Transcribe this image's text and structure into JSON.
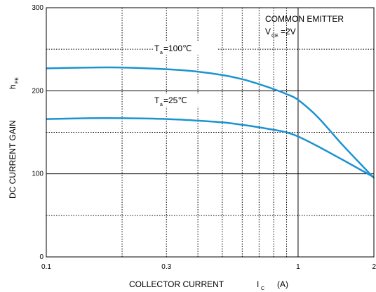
{
  "chart_data": {
    "type": "line",
    "x_scale": "log",
    "xlim": [
      0.1,
      2
    ],
    "ylim": [
      0,
      300
    ],
    "x_ticks": [
      {
        "value": 0.1,
        "label": "0.1"
      },
      {
        "value": 0.3,
        "label": "0.3"
      },
      {
        "value": 1,
        "label": "1"
      },
      {
        "value": 2,
        "label": "2"
      }
    ],
    "x_minor_grid": [
      0.2,
      0.4,
      0.5,
      0.6,
      0.7,
      0.8,
      0.9
    ],
    "y_ticks": [
      {
        "value": 0,
        "label": "0"
      },
      {
        "value": 100,
        "label": "100"
      },
      {
        "value": 200,
        "label": "200"
      },
      {
        "value": 300,
        "label": "300"
      }
    ],
    "y_minor_grid": [
      50,
      150,
      250
    ],
    "xlabel": {
      "main": "COLLECTOR CURRENT",
      "sym": "I",
      "sub": "C",
      "unit": "(A)"
    },
    "ylabel": {
      "main": "DC CURRENT GAIN",
      "sym": "h",
      "sub": "FE"
    },
    "annotation": {
      "line1": "COMMON EMITTER",
      "sym": "V",
      "sub": "CE",
      "value": "=2V"
    },
    "series": [
      {
        "name": "100℃",
        "label": {
          "sym": "T",
          "sub": "a",
          "value": "=100℃"
        },
        "color": "#1b93d1",
        "x": [
          0.1,
          0.15,
          0.2,
          0.3,
          0.4,
          0.5,
          0.6,
          0.7,
          0.8,
          0.9,
          1.0,
          1.2,
          1.5,
          2.0
        ],
        "y": [
          227,
          228,
          228,
          226,
          223,
          219,
          214,
          208,
          202,
          196,
          189,
          168,
          135,
          95
        ]
      },
      {
        "name": "25℃",
        "label": {
          "sym": "T",
          "sub": "a",
          "value": "=25℃"
        },
        "color": "#1b93d1",
        "x": [
          0.1,
          0.15,
          0.2,
          0.3,
          0.4,
          0.5,
          0.6,
          0.7,
          0.8,
          0.9,
          1.0,
          1.2,
          1.5,
          2.0
        ],
        "y": [
          166,
          167,
          167,
          166,
          164,
          162,
          159,
          156,
          153,
          150,
          145,
          133,
          117,
          96
        ]
      }
    ]
  }
}
